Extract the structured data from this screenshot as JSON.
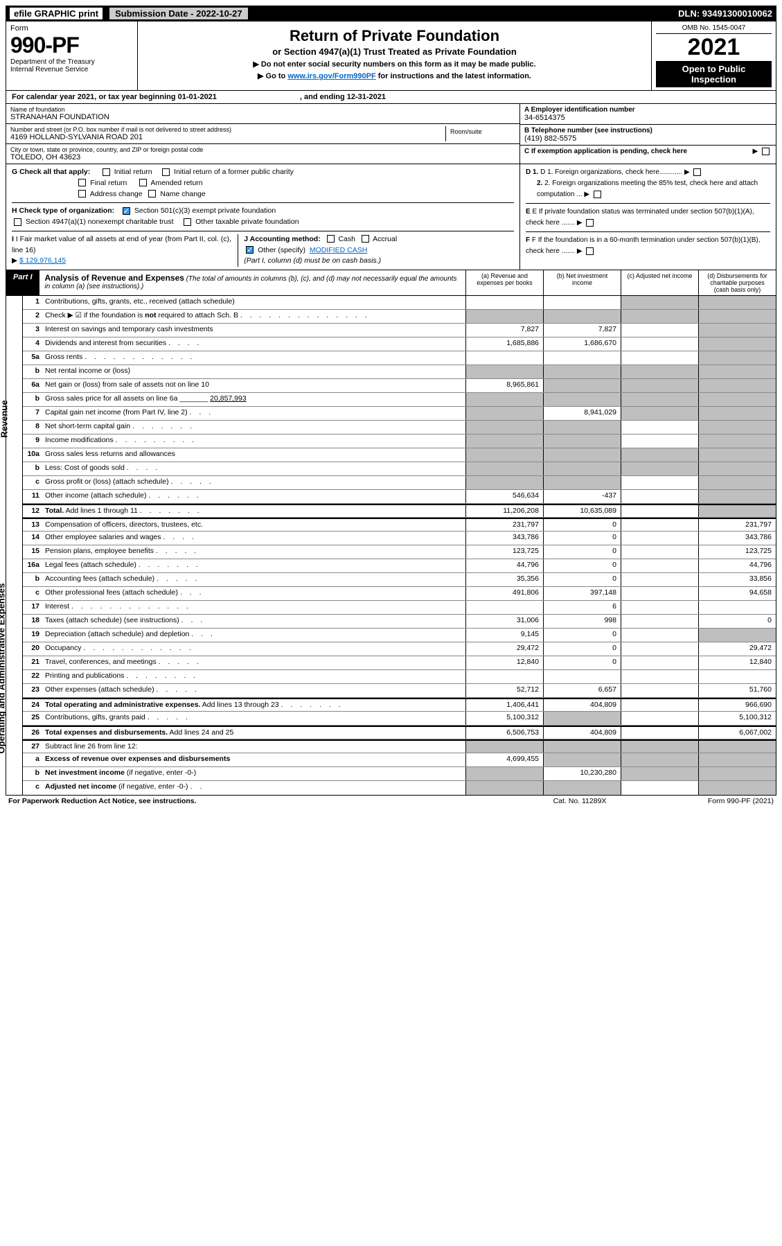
{
  "topbar": {
    "efile": "efile GRAPHIC print",
    "subdate_lbl": "Submission Date - 2022-10-27",
    "dln": "DLN: 93491300010062"
  },
  "header": {
    "form": "Form",
    "num": "990-PF",
    "dept": "Department of the Treasury",
    "irs": "Internal Revenue Service",
    "title": "Return of Private Foundation",
    "subtitle": "or Section 4947(a)(1) Trust Treated as Private Foundation",
    "note1": "▶ Do not enter social security numbers on this form as it may be made public.",
    "note2_pre": "▶ Go to ",
    "note2_link": "www.irs.gov/Form990PF",
    "note2_post": " for instructions and the latest information.",
    "omb": "OMB No. 1545-0047",
    "year": "2021",
    "otp": "Open to Public Inspection"
  },
  "cal": {
    "pre": "For calendar year 2021, or tax year beginning 01-01-2021",
    "mid": ", and ending 12-31-2021"
  },
  "entity": {
    "name_lbl": "Name of foundation",
    "name": "STRANAHAN FOUNDATION",
    "addr_lbl": "Number and street (or P.O. box number if mail is not delivered to street address)",
    "addr": "4169 HOLLAND-SYLVANIA ROAD 201",
    "room_lbl": "Room/suite",
    "city_lbl": "City or town, state or province, country, and ZIP or foreign postal code",
    "city": "TOLEDO, OH  43623",
    "a_lbl": "A Employer identification number",
    "a_val": "34-6514375",
    "b_lbl": "B Telephone number (see instructions)",
    "b_val": "(419) 882-5575",
    "c_lbl": "C If exemption application is pending, check here"
  },
  "g": {
    "lbl": "G Check all that apply:",
    "o1": "Initial return",
    "o2": "Initial return of a former public charity",
    "o3": "Final return",
    "o4": "Amended return",
    "o5": "Address change",
    "o6": "Name change"
  },
  "h": {
    "lbl": "H Check type of organization:",
    "o1": "Section 501(c)(3) exempt private foundation",
    "o2": "Section 4947(a)(1) nonexempt charitable trust",
    "o3": "Other taxable private foundation"
  },
  "i": {
    "lbl": "I Fair market value of all assets at end of year (from Part II, col. (c), line 16)",
    "val": "$  129,976,145"
  },
  "j": {
    "lbl": "J Accounting method:",
    "cash": "Cash",
    "acc": "Accrual",
    "oth": "Other (specify)",
    "oth_val": "MODIFIED CASH",
    "note": "(Part I, column (d) must be on cash basis.)"
  },
  "right": {
    "d1": "D 1. Foreign organizations, check here............",
    "d2": "2. Foreign organizations meeting the 85% test, check here and attach computation ...",
    "e": "E  If private foundation status was terminated under section 507(b)(1)(A), check here .......",
    "f": "F  If the foundation is in a 60-month termination under section 507(b)(1)(B), check here ......."
  },
  "part1": {
    "lbl": "Part I",
    "title": "Analysis of Revenue and Expenses",
    "desc": "(The total of amounts in columns (b), (c), and (d) may not necessarily equal the amounts in column (a) (see instructions).)",
    "ca": "(a)  Revenue and expenses per books",
    "cb": "(b)  Net investment income",
    "cc": "(c)  Adjusted net income",
    "cd": "(d)  Disbursements for charitable purposes (cash basis only)"
  },
  "sides": {
    "rev": "Revenue",
    "exp": "Operating and Administrative Expenses"
  },
  "rows": [
    {
      "n": "1",
      "d": "Contributions, gifts, grants, etc., received (attach schedule)",
      "a": "",
      "b": "",
      "c": "g",
      "dd": "g"
    },
    {
      "n": "2",
      "d": "Check ▶ ☑ if the foundation is <b>not</b> required to attach Sch. B <span class='dots'>. . . . . . . . . . . . . .</span>",
      "a": "g",
      "b": "g",
      "c": "g",
      "dd": "g"
    },
    {
      "n": "3",
      "d": "Interest on savings and temporary cash investments",
      "a": "7,827",
      "b": "7,827",
      "c": "",
      "dd": "g"
    },
    {
      "n": "4",
      "d": "Dividends and interest from securities <span class='dots'>. . . .</span>",
      "a": "1,685,886",
      "b": "1,686,670",
      "c": "",
      "dd": "g"
    },
    {
      "n": "5a",
      "d": "Gross rents <span class='dots'>. . . . . . . . . . . .</span>",
      "a": "",
      "b": "",
      "c": "",
      "dd": "g"
    },
    {
      "n": "b",
      "d": "Net rental income or (loss)  ",
      "a": "g",
      "b": "g",
      "c": "g",
      "dd": "g"
    },
    {
      "n": "6a",
      "d": "Net gain or (loss) from sale of assets not on line 10",
      "a": "8,965,861",
      "b": "g",
      "c": "g",
      "dd": "g"
    },
    {
      "n": "b",
      "d": "Gross sales price for all assets on line 6a _______ <u>20,857,993</u>",
      "a": "g",
      "b": "g",
      "c": "g",
      "dd": "g"
    },
    {
      "n": "7",
      "d": "Capital gain net income (from Part IV, line 2) <span class='dots'>. . .</span>",
      "a": "g",
      "b": "8,941,029",
      "c": "g",
      "dd": "g"
    },
    {
      "n": "8",
      "d": "Net short-term capital gain <span class='dots'>. . . . . . .</span>",
      "a": "g",
      "b": "g",
      "c": "",
      "dd": "g"
    },
    {
      "n": "9",
      "d": "Income modifications <span class='dots'>. . . . . . . . .</span>",
      "a": "g",
      "b": "g",
      "c": "",
      "dd": "g"
    },
    {
      "n": "10a",
      "d": "Gross sales less returns and allowances ",
      "a": "g",
      "b": "g",
      "c": "g",
      "dd": "g"
    },
    {
      "n": "b",
      "d": "Less: Cost of goods sold <span class='dots'>. . . .</span>",
      "a": "g",
      "b": "g",
      "c": "g",
      "dd": "g"
    },
    {
      "n": "c",
      "d": "Gross profit or (loss) (attach schedule) <span class='dots'>. . . . .</span>",
      "a": "g",
      "b": "g",
      "c": "",
      "dd": "g"
    },
    {
      "n": "11",
      "d": "Other income (attach schedule) <span class='dots'>. . . . . .</span>",
      "a": "546,634",
      "b": "-437",
      "c": "",
      "dd": "g"
    },
    {
      "n": "12",
      "d": "<b>Total.</b> Add lines 1 through 11 <span class='dots'>. . . . . . .</span>",
      "a": "11,206,208",
      "b": "10,635,089",
      "c": "",
      "dd": "g",
      "sep": true
    },
    {
      "n": "13",
      "d": "Compensation of officers, directors, trustees, etc.",
      "a": "231,797",
      "b": "0",
      "c": "",
      "dd": "231,797",
      "sep": true
    },
    {
      "n": "14",
      "d": "Other employee salaries and wages <span class='dots'>. . . .</span>",
      "a": "343,786",
      "b": "0",
      "c": "",
      "dd": "343,786"
    },
    {
      "n": "15",
      "d": "Pension plans, employee benefits <span class='dots'>. . . . .</span>",
      "a": "123,725",
      "b": "0",
      "c": "",
      "dd": "123,725"
    },
    {
      "n": "16a",
      "d": "Legal fees (attach schedule) <span class='dots'>. . . . . . .</span>",
      "a": "44,796",
      "b": "0",
      "c": "",
      "dd": "44,796"
    },
    {
      "n": "b",
      "d": "Accounting fees (attach schedule) <span class='dots'>. . . . .</span>",
      "a": "35,356",
      "b": "0",
      "c": "",
      "dd": "33,856"
    },
    {
      "n": "c",
      "d": "Other professional fees (attach schedule) <span class='dots'>. . .</span>",
      "a": "491,806",
      "b": "397,148",
      "c": "",
      "dd": "94,658"
    },
    {
      "n": "17",
      "d": "Interest <span class='dots'>. . . . . . . . . . . . .</span>",
      "a": "",
      "b": "6",
      "c": "",
      "dd": ""
    },
    {
      "n": "18",
      "d": "Taxes (attach schedule) (see instructions) <span class='dots'>. . .</span>",
      "a": "31,006",
      "b": "998",
      "c": "",
      "dd": "0"
    },
    {
      "n": "19",
      "d": "Depreciation (attach schedule) and depletion <span class='dots'>. . .</span>",
      "a": "9,145",
      "b": "0",
      "c": "",
      "dd": "g"
    },
    {
      "n": "20",
      "d": "Occupancy <span class='dots'>. . . . . . . . . . . .</span>",
      "a": "29,472",
      "b": "0",
      "c": "",
      "dd": "29,472"
    },
    {
      "n": "21",
      "d": "Travel, conferences, and meetings <span class='dots'>. . . . .</span>",
      "a": "12,840",
      "b": "0",
      "c": "",
      "dd": "12,840"
    },
    {
      "n": "22",
      "d": "Printing and publications <span class='dots'>. . . . . . . .</span>",
      "a": "",
      "b": "",
      "c": "",
      "dd": ""
    },
    {
      "n": "23",
      "d": "Other expenses (attach schedule) <span class='dots'>. . . . .</span>",
      "a": "52,712",
      "b": "6,657",
      "c": "",
      "dd": "51,760"
    },
    {
      "n": "24",
      "d": "<b>Total operating and administrative expenses.</b> Add lines 13 through 23 <span class='dots'>. . . . . . .</span>",
      "a": "1,406,441",
      "b": "404,809",
      "c": "",
      "dd": "966,690",
      "sep": true
    },
    {
      "n": "25",
      "d": "Contributions, gifts, grants paid <span class='dots'>. . . . .</span>",
      "a": "5,100,312",
      "b": "g",
      "c": "",
      "dd": "5,100,312"
    },
    {
      "n": "26",
      "d": "<b>Total expenses and disbursements.</b> Add lines 24 and 25",
      "a": "6,506,753",
      "b": "404,809",
      "c": "",
      "dd": "6,067,002",
      "sep": true
    },
    {
      "n": "27",
      "d": "Subtract line 26 from line 12:",
      "a": "g",
      "b": "g",
      "c": "g",
      "dd": "g",
      "sep": true
    },
    {
      "n": "a",
      "d": "<b>Excess of revenue over expenses and disbursements</b>",
      "a": "4,699,455",
      "b": "g",
      "c": "g",
      "dd": "g"
    },
    {
      "n": "b",
      "d": "<b>Net investment income</b> (if negative, enter -0-)",
      "a": "g",
      "b": "10,230,280",
      "c": "g",
      "dd": "g"
    },
    {
      "n": "c",
      "d": "<b>Adjusted net income</b> (if negative, enter -0-) <span class='dots'>. .</span>",
      "a": "g",
      "b": "g",
      "c": "",
      "dd": "g"
    }
  ],
  "footer": {
    "l": "For Paperwork Reduction Act Notice, see instructions.",
    "c": "Cat. No. 11289X",
    "r": "Form 990-PF (2021)"
  },
  "colors": {
    "accent": "#3898ec",
    "grey": "#bfbfbf"
  }
}
